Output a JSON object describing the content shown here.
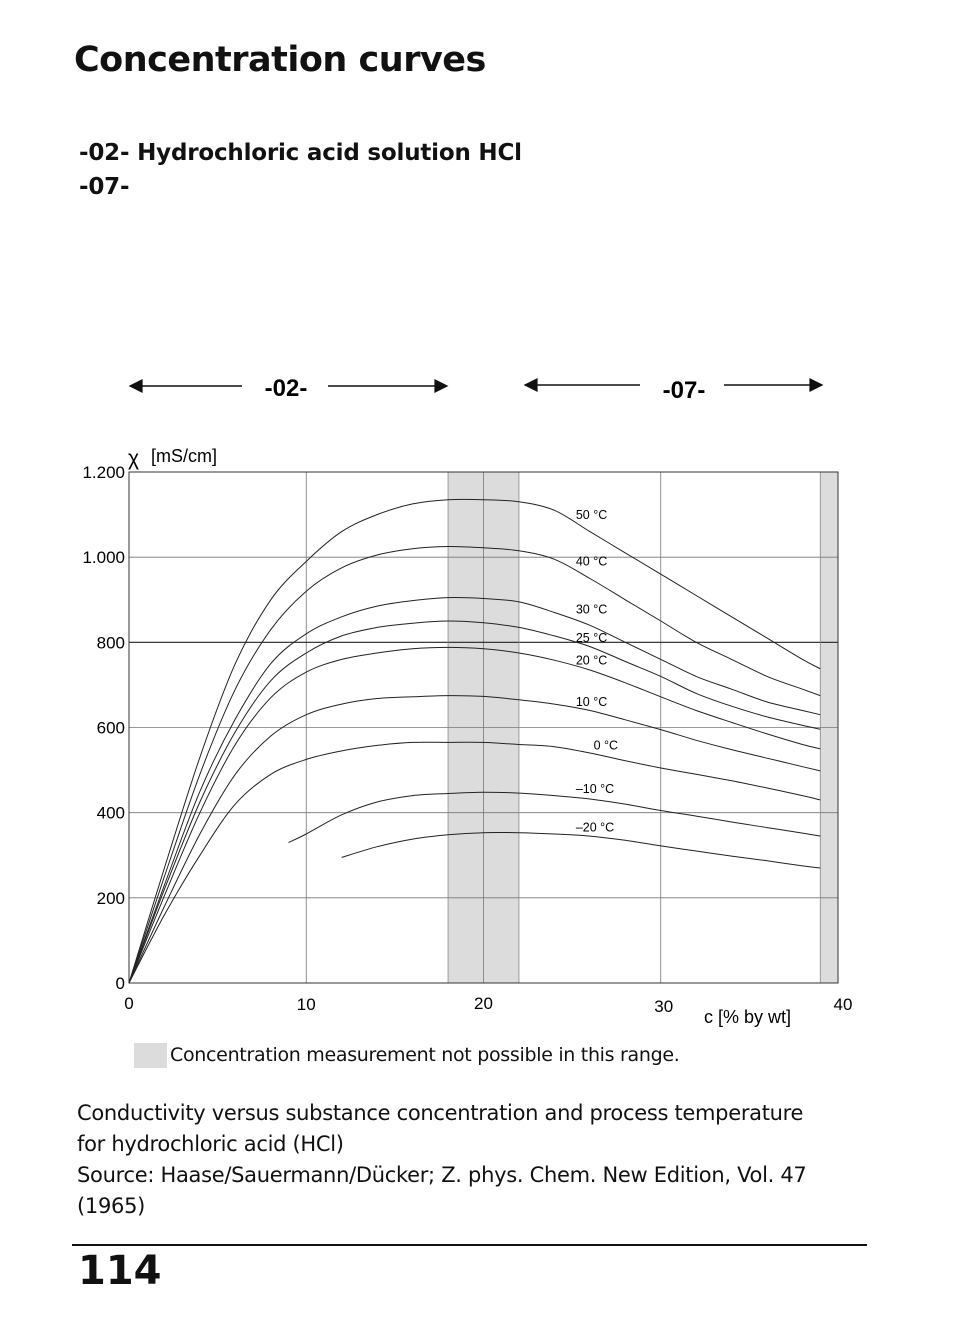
{
  "header": {
    "title": "Concentration curves",
    "subtitle_line1": "-02- Hydrochloric acid solution HCl",
    "subtitle_line2": "-07-"
  },
  "ranges": {
    "left_label": "-02-",
    "right_label": "-07-"
  },
  "chart_data": {
    "type": "line",
    "ylabel_symbol": "χ",
    "ylabel_unit": "[mS/cm]",
    "xlabel": "c [% by wt]",
    "xlim": [
      0,
      40
    ],
    "ylim": [
      0,
      1200
    ],
    "x_ticks": [
      0,
      10,
      20,
      30,
      40
    ],
    "x_tick_labels": [
      "0",
      "10",
      "20",
      "30",
      "40"
    ],
    "y_ticks": [
      0,
      200,
      400,
      600,
      800,
      1000,
      1200
    ],
    "y_tick_labels": [
      "0",
      "200",
      "400",
      "600",
      "800",
      "1.000",
      "1.200"
    ],
    "grid": true,
    "shaded_ranges": [
      [
        18,
        22
      ],
      [
        39,
        40
      ]
    ],
    "series": [
      {
        "name": "50 °C",
        "label_at": [
          26,
          1090
        ],
        "points": [
          [
            0,
            0
          ],
          [
            2,
            270
          ],
          [
            4,
            530
          ],
          [
            6,
            750
          ],
          [
            8,
            900
          ],
          [
            10,
            990
          ],
          [
            12,
            1060
          ],
          [
            14,
            1100
          ],
          [
            16,
            1125
          ],
          [
            18,
            1135
          ],
          [
            20,
            1135
          ],
          [
            22,
            1130
          ],
          [
            24,
            1110
          ],
          [
            26,
            1060
          ],
          [
            28,
            1010
          ],
          [
            30,
            960
          ],
          [
            32,
            910
          ],
          [
            34,
            860
          ],
          [
            36,
            810
          ],
          [
            38,
            760
          ],
          [
            39,
            738
          ]
        ]
      },
      {
        "name": "40 °C",
        "label_at": [
          26,
          980
        ],
        "points": [
          [
            0,
            0
          ],
          [
            2,
            250
          ],
          [
            4,
            490
          ],
          [
            6,
            690
          ],
          [
            8,
            830
          ],
          [
            10,
            920
          ],
          [
            12,
            975
          ],
          [
            14,
            1005
          ],
          [
            16,
            1020
          ],
          [
            18,
            1025
          ],
          [
            20,
            1022
          ],
          [
            22,
            1015
          ],
          [
            24,
            995
          ],
          [
            26,
            950
          ],
          [
            28,
            900
          ],
          [
            30,
            850
          ],
          [
            32,
            800
          ],
          [
            34,
            760
          ],
          [
            36,
            720
          ],
          [
            38,
            690
          ],
          [
            39,
            675
          ]
        ]
      },
      {
        "name": "30 °C",
        "label_at": [
          26,
          868
        ],
        "points": [
          [
            0,
            0
          ],
          [
            2,
            230
          ],
          [
            4,
            450
          ],
          [
            6,
            620
          ],
          [
            8,
            750
          ],
          [
            10,
            820
          ],
          [
            12,
            860
          ],
          [
            14,
            885
          ],
          [
            16,
            898
          ],
          [
            18,
            905
          ],
          [
            20,
            903
          ],
          [
            22,
            895
          ],
          [
            24,
            870
          ],
          [
            26,
            840
          ],
          [
            28,
            800
          ],
          [
            30,
            760
          ],
          [
            32,
            720
          ],
          [
            34,
            690
          ],
          [
            36,
            660
          ],
          [
            38,
            640
          ],
          [
            39,
            630
          ]
        ]
      },
      {
        "name": "25 °C",
        "label_at": [
          26,
          801
        ],
        "points": [
          [
            0,
            0
          ],
          [
            2,
            220
          ],
          [
            4,
            425
          ],
          [
            6,
            590
          ],
          [
            8,
            710
          ],
          [
            10,
            775
          ],
          [
            12,
            815
          ],
          [
            14,
            835
          ],
          [
            16,
            845
          ],
          [
            18,
            850
          ],
          [
            20,
            846
          ],
          [
            22,
            835
          ],
          [
            24,
            815
          ],
          [
            26,
            790
          ],
          [
            28,
            755
          ],
          [
            30,
            720
          ],
          [
            32,
            680
          ],
          [
            34,
            650
          ],
          [
            36,
            625
          ],
          [
            38,
            605
          ],
          [
            39,
            596
          ]
        ]
      },
      {
        "name": "20 °C",
        "label_at": [
          26,
          748
        ],
        "points": [
          [
            0,
            0
          ],
          [
            2,
            205
          ],
          [
            4,
            400
          ],
          [
            6,
            560
          ],
          [
            8,
            670
          ],
          [
            10,
            730
          ],
          [
            12,
            760
          ],
          [
            14,
            775
          ],
          [
            16,
            785
          ],
          [
            18,
            788
          ],
          [
            20,
            785
          ],
          [
            22,
            775
          ],
          [
            24,
            758
          ],
          [
            26,
            735
          ],
          [
            28,
            705
          ],
          [
            30,
            672
          ],
          [
            32,
            640
          ],
          [
            34,
            612
          ],
          [
            36,
            585
          ],
          [
            38,
            560
          ],
          [
            39,
            550
          ]
        ]
      },
      {
        "name": "10 °C",
        "label_at": [
          26,
          650
        ],
        "points": [
          [
            0,
            0
          ],
          [
            2,
            180
          ],
          [
            4,
            350
          ],
          [
            6,
            490
          ],
          [
            8,
            580
          ],
          [
            10,
            630
          ],
          [
            12,
            655
          ],
          [
            14,
            668
          ],
          [
            16,
            672
          ],
          [
            18,
            675
          ],
          [
            20,
            673
          ],
          [
            22,
            665
          ],
          [
            24,
            655
          ],
          [
            26,
            640
          ],
          [
            28,
            618
          ],
          [
            30,
            595
          ],
          [
            32,
            570
          ],
          [
            34,
            548
          ],
          [
            36,
            528
          ],
          [
            38,
            508
          ],
          [
            39,
            498
          ]
        ]
      },
      {
        "name": "0 °C",
        "label_at": [
          27,
          548
        ],
        "points": [
          [
            0,
            0
          ],
          [
            2,
            160
          ],
          [
            4,
            300
          ],
          [
            6,
            420
          ],
          [
            8,
            490
          ],
          [
            10,
            525
          ],
          [
            12,
            545
          ],
          [
            14,
            558
          ],
          [
            16,
            565
          ],
          [
            18,
            565
          ],
          [
            20,
            565
          ],
          [
            22,
            560
          ],
          [
            24,
            555
          ],
          [
            26,
            540
          ],
          [
            28,
            522
          ],
          [
            30,
            505
          ],
          [
            32,
            490
          ],
          [
            34,
            475
          ],
          [
            36,
            458
          ],
          [
            38,
            440
          ],
          [
            39,
            430
          ]
        ]
      },
      {
        "name": "–10 °C",
        "label_at": [
          26,
          446
        ],
        "points": [
          [
            9,
            330
          ],
          [
            10,
            350
          ],
          [
            12,
            395
          ],
          [
            14,
            425
          ],
          [
            16,
            440
          ],
          [
            18,
            445
          ],
          [
            20,
            448
          ],
          [
            22,
            446
          ],
          [
            24,
            440
          ],
          [
            26,
            432
          ],
          [
            28,
            420
          ],
          [
            30,
            405
          ],
          [
            32,
            392
          ],
          [
            34,
            378
          ],
          [
            36,
            365
          ],
          [
            38,
            352
          ],
          [
            39,
            345
          ]
        ]
      },
      {
        "name": "–20 °C",
        "label_at": [
          26,
          356
        ],
        "points": [
          [
            12,
            295
          ],
          [
            14,
            320
          ],
          [
            16,
            338
          ],
          [
            18,
            348
          ],
          [
            20,
            353
          ],
          [
            22,
            353
          ],
          [
            24,
            350
          ],
          [
            26,
            345
          ],
          [
            28,
            335
          ],
          [
            30,
            322
          ],
          [
            32,
            310
          ],
          [
            34,
            298
          ],
          [
            36,
            287
          ],
          [
            38,
            275
          ],
          [
            39,
            270
          ]
        ]
      }
    ]
  },
  "legend": {
    "text": "Concentration measurement not possible in this range."
  },
  "caption": {
    "line1": "Conductivity versus substance concentration and process temperature",
    "line2": "for hydrochloric acid (HCl)",
    "line3": "Source: Haase/Sauermann/Dücker; Z. phys. Chem. New Edition, Vol. 47",
    "line4": "(1965)"
  },
  "footer": {
    "page_number": "114"
  }
}
